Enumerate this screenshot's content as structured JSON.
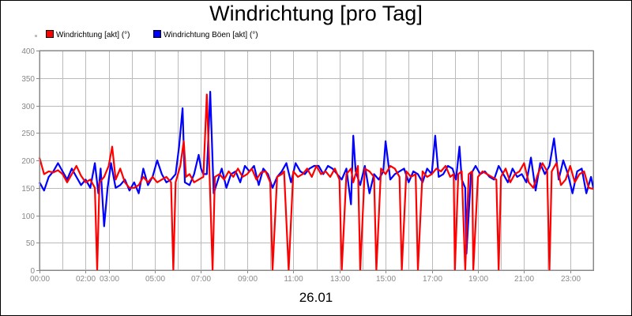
{
  "chart_data": {
    "type": "line",
    "title": "Windrichtung [pro Tag]",
    "xlabel": "",
    "ylabel": "",
    "date_label": "26.01",
    "x_range_hours": [
      0,
      24
    ],
    "ylim": [
      0,
      400
    ],
    "yticks": [
      0,
      50,
      100,
      150,
      200,
      250,
      300,
      350,
      400
    ],
    "ytick_labels": [
      "0",
      "50",
      "100",
      "150",
      "200",
      "250",
      "300",
      "350",
      "400"
    ],
    "xticks": [
      0,
      2,
      3,
      5,
      7,
      9,
      11,
      13,
      15,
      17,
      19,
      21,
      23
    ],
    "xtick_labels": [
      "00:00",
      "02:00",
      "03:00",
      "05:00",
      "07:00",
      "09:00",
      "11:00",
      "13:00",
      "15:00",
      "17:00",
      "19:00",
      "21:00",
      "23:00"
    ],
    "grid": true,
    "legend_position": "top-left",
    "series": [
      {
        "name": "Windrichtung [akt] (°)",
        "color": "#ff0000",
        "points": [
          [
            0,
            205
          ],
          [
            0.2,
            175
          ],
          [
            0.4,
            180
          ],
          [
            0.6,
            178
          ],
          [
            0.8,
            182
          ],
          [
            1.0,
            175
          ],
          [
            1.2,
            160
          ],
          [
            1.4,
            175
          ],
          [
            1.6,
            190
          ],
          [
            1.8,
            172
          ],
          [
            2.0,
            160
          ],
          [
            2.2,
            165
          ],
          [
            2.4,
            150
          ],
          [
            2.5,
            0
          ],
          [
            2.6,
            160
          ],
          [
            2.8,
            170
          ],
          [
            3.0,
            190
          ],
          [
            3.15,
            225
          ],
          [
            3.3,
            165
          ],
          [
            3.5,
            185
          ],
          [
            3.7,
            160
          ],
          [
            3.9,
            150
          ],
          [
            4.1,
            150
          ],
          [
            4.3,
            155
          ],
          [
            4.5,
            170
          ],
          [
            4.7,
            160
          ],
          [
            4.9,
            170
          ],
          [
            5.1,
            160
          ],
          [
            5.3,
            165
          ],
          [
            5.5,
            170
          ],
          [
            5.7,
            160
          ],
          [
            5.8,
            0
          ],
          [
            5.9,
            160
          ],
          [
            6.1,
            190
          ],
          [
            6.25,
            235
          ],
          [
            6.35,
            170
          ],
          [
            6.5,
            175
          ],
          [
            6.7,
            160
          ],
          [
            6.9,
            165
          ],
          [
            7.1,
            170
          ],
          [
            7.25,
            320
          ],
          [
            7.35,
            200
          ],
          [
            7.5,
            0
          ],
          [
            7.6,
            170
          ],
          [
            7.8,
            175
          ],
          [
            8.0,
            165
          ],
          [
            8.2,
            180
          ],
          [
            8.4,
            170
          ],
          [
            8.6,
            185
          ],
          [
            8.8,
            170
          ],
          [
            9.0,
            175
          ],
          [
            9.2,
            185
          ],
          [
            9.4,
            165
          ],
          [
            9.6,
            178
          ],
          [
            9.8,
            180
          ],
          [
            10.0,
            160
          ],
          [
            10.1,
            0
          ],
          [
            10.3,
            170
          ],
          [
            10.5,
            175
          ],
          [
            10.6,
            180
          ],
          [
            10.8,
            0
          ],
          [
            11.0,
            180
          ],
          [
            11.2,
            170
          ],
          [
            11.4,
            175
          ],
          [
            11.6,
            185
          ],
          [
            11.8,
            170
          ],
          [
            12.0,
            190
          ],
          [
            12.2,
            175
          ],
          [
            12.4,
            180
          ],
          [
            12.6,
            170
          ],
          [
            12.8,
            185
          ],
          [
            13.0,
            165
          ],
          [
            13.1,
            0
          ],
          [
            13.3,
            175
          ],
          [
            13.5,
            185
          ],
          [
            13.6,
            160
          ],
          [
            13.8,
            190
          ],
          [
            13.9,
            0
          ],
          [
            14.1,
            185
          ],
          [
            14.3,
            180
          ],
          [
            14.5,
            170
          ],
          [
            14.6,
            0
          ],
          [
            14.8,
            185
          ],
          [
            15.0,
            175
          ],
          [
            15.2,
            190
          ],
          [
            15.4,
            185
          ],
          [
            15.6,
            170
          ],
          [
            15.7,
            0
          ],
          [
            15.9,
            180
          ],
          [
            16.1,
            170
          ],
          [
            16.3,
            175
          ],
          [
            16.4,
            0
          ],
          [
            16.6,
            180
          ],
          [
            16.8,
            170
          ],
          [
            17.0,
            175
          ],
          [
            17.2,
            185
          ],
          [
            17.4,
            180
          ],
          [
            17.6,
            190
          ],
          [
            17.8,
            170
          ],
          [
            17.95,
            175
          ],
          [
            18.0,
            0
          ],
          [
            18.15,
            175
          ],
          [
            18.3,
            180
          ],
          [
            18.45,
            0
          ],
          [
            18.6,
            175
          ],
          [
            18.75,
            180
          ],
          [
            18.8,
            0
          ],
          [
            19.0,
            170
          ],
          [
            19.2,
            180
          ],
          [
            19.4,
            175
          ],
          [
            19.6,
            170
          ],
          [
            19.8,
            165
          ],
          [
            19.9,
            0
          ],
          [
            20.0,
            170
          ],
          [
            20.2,
            185
          ],
          [
            20.4,
            160
          ],
          [
            20.6,
            175
          ],
          [
            20.8,
            180
          ],
          [
            21.0,
            195
          ],
          [
            21.2,
            160
          ],
          [
            21.4,
            150
          ],
          [
            21.6,
            175
          ],
          [
            21.8,
            195
          ],
          [
            22.0,
            180
          ],
          [
            22.1,
            0
          ],
          [
            22.2,
            180
          ],
          [
            22.4,
            195
          ],
          [
            22.6,
            155
          ],
          [
            22.8,
            165
          ],
          [
            23.0,
            190
          ],
          [
            23.2,
            160
          ],
          [
            23.4,
            175
          ],
          [
            23.6,
            180
          ],
          [
            23.8,
            150
          ],
          [
            24.0,
            148
          ]
        ]
      },
      {
        "name": "Windrichtung Böen [akt] (°)",
        "color": "#0000ff",
        "points": [
          [
            0,
            160
          ],
          [
            0.2,
            145
          ],
          [
            0.4,
            170
          ],
          [
            0.6,
            180
          ],
          [
            0.8,
            195
          ],
          [
            1.0,
            180
          ],
          [
            1.2,
            165
          ],
          [
            1.4,
            185
          ],
          [
            1.6,
            170
          ],
          [
            1.8,
            155
          ],
          [
            2.0,
            165
          ],
          [
            2.2,
            150
          ],
          [
            2.4,
            195
          ],
          [
            2.55,
            140
          ],
          [
            2.65,
            185
          ],
          [
            2.8,
            80
          ],
          [
            2.95,
            150
          ],
          [
            3.1,
            195
          ],
          [
            3.3,
            150
          ],
          [
            3.5,
            155
          ],
          [
            3.7,
            165
          ],
          [
            3.9,
            145
          ],
          [
            4.1,
            160
          ],
          [
            4.3,
            140
          ],
          [
            4.5,
            185
          ],
          [
            4.7,
            155
          ],
          [
            4.9,
            170
          ],
          [
            5.1,
            200
          ],
          [
            5.3,
            175
          ],
          [
            5.5,
            160
          ],
          [
            5.7,
            165
          ],
          [
            5.9,
            175
          ],
          [
            6.05,
            225
          ],
          [
            6.2,
            295
          ],
          [
            6.3,
            160
          ],
          [
            6.5,
            155
          ],
          [
            6.7,
            175
          ],
          [
            6.9,
            210
          ],
          [
            7.0,
            185
          ],
          [
            7.1,
            175
          ],
          [
            7.25,
            175
          ],
          [
            7.4,
            325
          ],
          [
            7.55,
            140
          ],
          [
            7.7,
            160
          ],
          [
            7.9,
            185
          ],
          [
            8.1,
            150
          ],
          [
            8.3,
            175
          ],
          [
            8.5,
            180
          ],
          [
            8.7,
            160
          ],
          [
            8.9,
            190
          ],
          [
            9.1,
            180
          ],
          [
            9.3,
            190
          ],
          [
            9.5,
            155
          ],
          [
            9.7,
            185
          ],
          [
            9.9,
            175
          ],
          [
            10.1,
            150
          ],
          [
            10.3,
            170
          ],
          [
            10.5,
            180
          ],
          [
            10.7,
            195
          ],
          [
            10.9,
            160
          ],
          [
            11.1,
            195
          ],
          [
            11.3,
            180
          ],
          [
            11.5,
            175
          ],
          [
            11.7,
            185
          ],
          [
            11.9,
            190
          ],
          [
            12.1,
            190
          ],
          [
            12.3,
            175
          ],
          [
            12.5,
            190
          ],
          [
            12.7,
            185
          ],
          [
            12.9,
            175
          ],
          [
            13.1,
            165
          ],
          [
            13.3,
            185
          ],
          [
            13.5,
            120
          ],
          [
            13.6,
            245
          ],
          [
            13.7,
            180
          ],
          [
            13.9,
            155
          ],
          [
            14.1,
            190
          ],
          [
            14.3,
            140
          ],
          [
            14.5,
            175
          ],
          [
            14.7,
            165
          ],
          [
            14.9,
            180
          ],
          [
            15.0,
            235
          ],
          [
            15.2,
            165
          ],
          [
            15.4,
            175
          ],
          [
            15.6,
            180
          ],
          [
            15.8,
            185
          ],
          [
            16.0,
            160
          ],
          [
            16.2,
            180
          ],
          [
            16.4,
            175
          ],
          [
            16.6,
            160
          ],
          [
            16.8,
            185
          ],
          [
            17.0,
            175
          ],
          [
            17.15,
            245
          ],
          [
            17.3,
            170
          ],
          [
            17.5,
            175
          ],
          [
            17.7,
            190
          ],
          [
            17.9,
            185
          ],
          [
            18.05,
            165
          ],
          [
            18.2,
            225
          ],
          [
            18.3,
            165
          ],
          [
            18.45,
            150
          ],
          [
            18.5,
            30
          ],
          [
            18.7,
            175
          ],
          [
            18.9,
            190
          ],
          [
            19.1,
            175
          ],
          [
            19.3,
            180
          ],
          [
            19.5,
            170
          ],
          [
            19.7,
            165
          ],
          [
            19.9,
            190
          ],
          [
            20.1,
            175
          ],
          [
            20.3,
            160
          ],
          [
            20.5,
            185
          ],
          [
            20.7,
            170
          ],
          [
            20.9,
            175
          ],
          [
            21.1,
            160
          ],
          [
            21.3,
            205
          ],
          [
            21.5,
            145
          ],
          [
            21.7,
            195
          ],
          [
            21.9,
            175
          ],
          [
            22.1,
            190
          ],
          [
            22.3,
            240
          ],
          [
            22.5,
            165
          ],
          [
            22.7,
            200
          ],
          [
            22.9,
            175
          ],
          [
            23.1,
            140
          ],
          [
            23.3,
            180
          ],
          [
            23.5,
            185
          ],
          [
            23.7,
            140
          ],
          [
            23.9,
            170
          ],
          [
            24.0,
            150
          ]
        ]
      }
    ]
  },
  "colors": {
    "grid": "#bbbbbb",
    "axis": "#888888",
    "background": "#ffffff"
  }
}
